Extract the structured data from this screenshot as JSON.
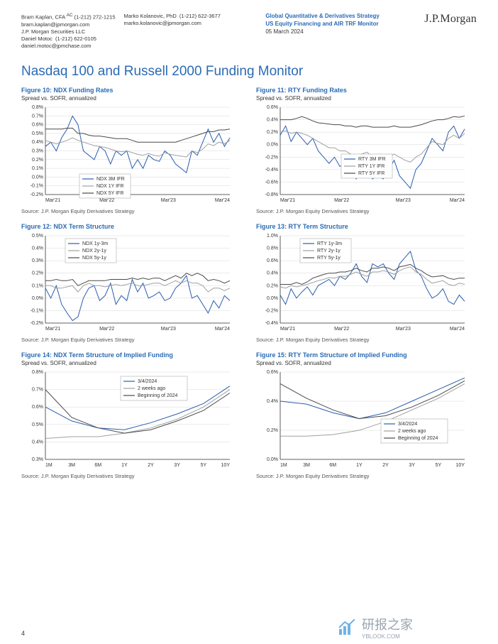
{
  "header": {
    "contacts": [
      {
        "name": "Bram Kaplan, CFA",
        "sup": "AC",
        "phone": "(1-212) 272-1215",
        "email": "bram.kaplan@jpmorgan.com",
        "org": "J.P. Morgan Securities LLC"
      },
      {
        "name": "Daniel Motoc",
        "phone": "(1-212) 622-0105",
        "email": "daniel.motoc@jpmchase.com"
      },
      {
        "name": "Marko Kolanovic, PhD",
        "phone": "(1-212) 622-3677",
        "email": "marko.kolanovic@jpmorgan.com"
      }
    ],
    "doc_lines": [
      "Global Quantitative & Derivatives Strategy",
      "US Equity Financing and AIR TRF Monitor"
    ],
    "doc_date": "05 March 2024",
    "logo": "J.P.Morgan"
  },
  "section_title": "Nasdaq 100 and Russell 2000 Funding Monitor",
  "source_text": "Source: J.P. Morgan Equity Derivatives Strategy",
  "page_number": "4",
  "watermark": {
    "zh": "研报之家",
    "sub": "YBLOOK.COM"
  },
  "colors": {
    "blue": "#2a5db0",
    "gray": "#a0a0a0",
    "dark": "#4a4a4a",
    "grid": "#d8d8d8",
    "axis": "#333333",
    "title": "#2a6bb5"
  },
  "charts": {
    "fig10": {
      "title": "Figure 10: NDX Funding Rates",
      "subtitle": "Spread vs. SOFR, annualized",
      "type": "line",
      "xlabels": [
        "Mar'21",
        "Mar'22",
        "Mar'23",
        "Mar'24"
      ],
      "ylim": [
        -0.2,
        0.8
      ],
      "yticks": [
        -0.2,
        -0.1,
        0.0,
        0.1,
        0.2,
        0.3,
        0.4,
        0.5,
        0.6,
        0.7,
        0.8
      ],
      "legend": [
        {
          "label": "NDX 3M IFR",
          "color": "#2a5db0"
        },
        {
          "label": "NDX 1Y IFR",
          "color": "#a0a0a0"
        },
        {
          "label": "NDX 5Y IFR",
          "color": "#4a4a4a"
        }
      ],
      "series": {
        "blue": [
          0.35,
          0.4,
          0.3,
          0.45,
          0.55,
          0.7,
          0.6,
          0.3,
          0.25,
          0.2,
          0.35,
          0.3,
          0.15,
          0.3,
          0.25,
          0.3,
          0.1,
          0.2,
          0.1,
          0.25,
          0.2,
          0.18,
          0.3,
          0.25,
          0.15,
          0.1,
          0.05,
          0.3,
          0.25,
          0.4,
          0.55,
          0.4,
          0.5,
          0.35,
          0.45
        ],
        "gray": [
          0.42,
          0.4,
          0.38,
          0.4,
          0.42,
          0.45,
          0.42,
          0.4,
          0.38,
          0.36,
          0.35,
          0.34,
          0.32,
          0.3,
          0.29,
          0.3,
          0.28,
          0.26,
          0.25,
          0.27,
          0.25,
          0.24,
          0.28,
          0.26,
          0.25,
          0.24,
          0.23,
          0.3,
          0.28,
          0.32,
          0.38,
          0.36,
          0.4,
          0.38,
          0.42
        ],
        "dark": [
          0.55,
          0.55,
          0.55,
          0.55,
          0.56,
          0.56,
          0.5,
          0.5,
          0.48,
          0.47,
          0.47,
          0.46,
          0.45,
          0.44,
          0.44,
          0.44,
          0.42,
          0.4,
          0.4,
          0.4,
          0.4,
          0.4,
          0.4,
          0.4,
          0.4,
          0.42,
          0.44,
          0.46,
          0.48,
          0.5,
          0.52,
          0.52,
          0.54,
          0.54,
          0.55
        ]
      }
    },
    "fig11": {
      "title": "Figure 11: RTY Funding Rates",
      "subtitle": "Spread vs. SOFR, annualized",
      "type": "line",
      "xlabels": [
        "Mar'21",
        "Mar'22",
        "Mar'23",
        "Mar'24"
      ],
      "ylim": [
        -0.8,
        0.6
      ],
      "yticks": [
        -0.8,
        -0.6,
        -0.4,
        -0.2,
        0.0,
        0.2,
        0.4,
        0.6
      ],
      "legend": [
        {
          "label": "RTY 3M IFR",
          "color": "#2a5db0"
        },
        {
          "label": "RTY 1Y IFR",
          "color": "#a0a0a0"
        },
        {
          "label": "RTY 5Y IFR",
          "color": "#4a4a4a"
        }
      ],
      "series": {
        "blue": [
          0.15,
          0.3,
          0.05,
          0.2,
          0.1,
          0.0,
          0.1,
          -0.1,
          -0.2,
          -0.3,
          -0.2,
          -0.35,
          -0.3,
          -0.4,
          -0.55,
          -0.35,
          -0.2,
          -0.55,
          -0.5,
          -0.55,
          -0.4,
          -0.25,
          -0.5,
          -0.6,
          -0.7,
          -0.4,
          -0.3,
          -0.1,
          0.1,
          0.0,
          -0.1,
          0.2,
          0.3,
          0.1,
          0.25
        ],
        "gray": [
          0.2,
          0.22,
          0.18,
          0.2,
          0.18,
          0.15,
          0.1,
          0.05,
          0.0,
          -0.05,
          -0.05,
          -0.1,
          -0.1,
          -0.15,
          -0.2,
          -0.15,
          -0.12,
          -0.2,
          -0.2,
          -0.22,
          -0.2,
          -0.15,
          -0.2,
          -0.25,
          -0.28,
          -0.2,
          -0.15,
          -0.05,
          0.05,
          0.02,
          0.0,
          0.1,
          0.15,
          0.1,
          0.18
        ],
        "dark": [
          0.4,
          0.4,
          0.4,
          0.42,
          0.45,
          0.42,
          0.38,
          0.35,
          0.34,
          0.33,
          0.32,
          0.32,
          0.3,
          0.3,
          0.28,
          0.3,
          0.3,
          0.28,
          0.28,
          0.28,
          0.28,
          0.3,
          0.28,
          0.28,
          0.28,
          0.3,
          0.32,
          0.35,
          0.38,
          0.4,
          0.4,
          0.42,
          0.45,
          0.44,
          0.46
        ]
      }
    },
    "fig12": {
      "title": "Figure 12: NDX Term Structure",
      "type": "line",
      "xlabels": [
        "Mar'21",
        "Mar'22",
        "Mar'23",
        "Mar'24"
      ],
      "ylim": [
        -0.2,
        0.5
      ],
      "yticks": [
        -0.2,
        -0.1,
        0.0,
        0.1,
        0.2,
        0.3,
        0.4,
        0.5
      ],
      "legend": [
        {
          "label": "NDX 1y-3m",
          "color": "#2a5db0"
        },
        {
          "label": "NDX 2y-1y",
          "color": "#a0a0a0"
        },
        {
          "label": "NDX 5y-1y",
          "color": "#4a4a4a"
        }
      ],
      "series": {
        "blue": [
          0.08,
          0.0,
          0.1,
          -0.05,
          -0.12,
          -0.18,
          -0.15,
          0.0,
          0.08,
          0.1,
          -0.02,
          0.02,
          0.12,
          -0.05,
          0.02,
          -0.02,
          0.15,
          0.05,
          0.12,
          0.0,
          0.02,
          0.05,
          -0.02,
          0.0,
          0.08,
          0.12,
          0.18,
          0.0,
          0.02,
          -0.05,
          -0.12,
          -0.02,
          -0.08,
          0.02,
          -0.02
        ],
        "gray": [
          0.1,
          0.1,
          0.08,
          0.08,
          0.09,
          0.1,
          0.05,
          0.1,
          0.12,
          0.1,
          0.1,
          0.09,
          0.1,
          0.11,
          0.1,
          0.11,
          0.12,
          0.1,
          0.1,
          0.11,
          0.12,
          0.12,
          0.1,
          0.12,
          0.14,
          0.12,
          0.14,
          0.12,
          0.12,
          0.1,
          0.05,
          0.08,
          0.08,
          0.06,
          0.08
        ],
        "dark": [
          0.14,
          0.14,
          0.15,
          0.14,
          0.14,
          0.15,
          0.1,
          0.12,
          0.14,
          0.14,
          0.14,
          0.14,
          0.15,
          0.15,
          0.15,
          0.15,
          0.16,
          0.15,
          0.16,
          0.15,
          0.16,
          0.16,
          0.14,
          0.16,
          0.18,
          0.16,
          0.2,
          0.18,
          0.2,
          0.18,
          0.14,
          0.15,
          0.14,
          0.12,
          0.14
        ]
      }
    },
    "fig13": {
      "title": "Figure 13: RTY Term Structure",
      "type": "line",
      "xlabels": [
        "Mar'21",
        "Mar'22",
        "Mar'23",
        "Mar'24"
      ],
      "ylim": [
        -0.4,
        1.0
      ],
      "yticks": [
        -0.4,
        -0.2,
        0.0,
        0.2,
        0.4,
        0.6,
        0.8,
        1.0
      ],
      "legend": [
        {
          "label": "RTY 1y-3m",
          "color": "#2a5db0"
        },
        {
          "label": "RTY 2y-1y",
          "color": "#a0a0a0"
        },
        {
          "label": "RTY 5y-1y",
          "color": "#4a4a4a"
        }
      ],
      "series": {
        "blue": [
          0.05,
          -0.1,
          0.15,
          0.0,
          0.1,
          0.18,
          0.05,
          0.2,
          0.25,
          0.3,
          0.2,
          0.35,
          0.3,
          0.4,
          0.55,
          0.35,
          0.25,
          0.55,
          0.5,
          0.55,
          0.4,
          0.3,
          0.55,
          0.65,
          0.75,
          0.45,
          0.35,
          0.15,
          0.0,
          0.05,
          0.15,
          -0.05,
          -0.1,
          0.05,
          -0.05
        ],
        "gray": [
          0.18,
          0.16,
          0.2,
          0.18,
          0.2,
          0.22,
          0.25,
          0.28,
          0.3,
          0.33,
          0.32,
          0.35,
          0.35,
          0.38,
          0.42,
          0.38,
          0.35,
          0.42,
          0.42,
          0.44,
          0.42,
          0.38,
          0.44,
          0.48,
          0.5,
          0.42,
          0.38,
          0.3,
          0.24,
          0.26,
          0.28,
          0.22,
          0.2,
          0.24,
          0.22
        ],
        "dark": [
          0.22,
          0.22,
          0.22,
          0.25,
          0.22,
          0.26,
          0.32,
          0.35,
          0.38,
          0.4,
          0.4,
          0.42,
          0.42,
          0.44,
          0.48,
          0.44,
          0.42,
          0.48,
          0.48,
          0.5,
          0.48,
          0.44,
          0.5,
          0.52,
          0.54,
          0.48,
          0.44,
          0.38,
          0.34,
          0.35,
          0.36,
          0.32,
          0.3,
          0.32,
          0.32
        ]
      }
    },
    "fig14": {
      "title": "Figure 14: NDX Term Structure of Implied Funding",
      "subtitle": "Spread vs. SOFR, annualized",
      "type": "line",
      "xlabels": [
        "1M",
        "3M",
        "6M",
        "1Y",
        "2Y",
        "3Y",
        "5Y",
        "10Y"
      ],
      "ylim": [
        0.3,
        0.8
      ],
      "yticks": [
        0.3,
        0.4,
        0.5,
        0.6,
        0.7,
        0.8
      ],
      "legend": [
        {
          "label": "3/4/2024",
          "color": "#2a5db0"
        },
        {
          "label": "2 weeks ago",
          "color": "#a0a0a0"
        },
        {
          "label": "Beginning of 2024",
          "color": "#4a4a4a"
        }
      ],
      "series": {
        "blue": [
          0.6,
          0.52,
          0.48,
          0.47,
          0.51,
          0.56,
          0.62,
          0.72
        ],
        "gray": [
          0.42,
          0.43,
          0.43,
          0.45,
          0.48,
          0.53,
          0.6,
          0.7
        ],
        "dark": [
          0.7,
          0.54,
          0.48,
          0.45,
          0.47,
          0.52,
          0.58,
          0.68
        ]
      }
    },
    "fig15": {
      "title": "Figure 15: RTY Term Structure of Implied Funding",
      "subtitle": "Spread vs. SOFR, annualized",
      "type": "line",
      "xlabels": [
        "1M",
        "3M",
        "6M",
        "1Y",
        "2Y",
        "3Y",
        "5Y",
        "10Y"
      ],
      "ylim": [
        0.0,
        0.6
      ],
      "yticks": [
        0.0,
        0.2,
        0.4,
        0.6
      ],
      "legend": [
        {
          "label": "3/4/2024",
          "color": "#2a5db0"
        },
        {
          "label": "2 weeks ago",
          "color": "#a0a0a0"
        },
        {
          "label": "Beginning of 2024",
          "color": "#4a4a4a"
        }
      ],
      "series": {
        "blue": [
          0.4,
          0.38,
          0.32,
          0.28,
          0.32,
          0.4,
          0.48,
          0.56
        ],
        "gray": [
          0.16,
          0.16,
          0.17,
          0.2,
          0.26,
          0.34,
          0.42,
          0.52
        ],
        "dark": [
          0.52,
          0.42,
          0.34,
          0.28,
          0.3,
          0.36,
          0.44,
          0.54
        ]
      }
    }
  }
}
